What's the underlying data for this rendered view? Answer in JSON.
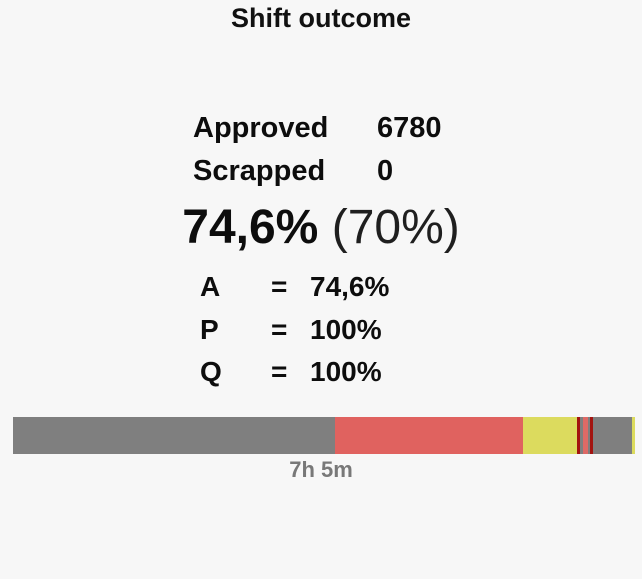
{
  "page": {
    "background": "#f7f7f7"
  },
  "title": "Shift outcome",
  "stats": {
    "rows": [
      {
        "label": "Approved",
        "value": "6780"
      },
      {
        "label": "Scrapped",
        "value": "0"
      }
    ]
  },
  "summary": {
    "achieved": "74,6%",
    "target": "(70%)"
  },
  "kpis": [
    {
      "letter": "A",
      "eq": "=",
      "value": "74,6%"
    },
    {
      "letter": "P",
      "eq": "=",
      "value": "100%"
    },
    {
      "letter": "Q",
      "eq": "=",
      "value": "100%"
    }
  ],
  "timeline": {
    "duration": "7h 5m"
  },
  "colors": {
    "background": "#f7f7f7",
    "text": "#0d0d0d",
    "duration_text": "#787878",
    "segment_gray": "#7f7f7f",
    "segment_red": "#e0625f",
    "segment_yellow": "#dcdb5e",
    "segment_dark_red": "#a31410"
  },
  "chart_data": {
    "type": "bar",
    "orientation": "horizontal_stacked_timeline",
    "title": "Shift outcome",
    "duration_label": "7h 5m",
    "legend_position": "none",
    "grid": false,
    "kpi": {
      "approved_count": 6780,
      "scrapped_count": 0,
      "outcome_pct": 74.6,
      "target_pct": 70,
      "availability_A_pct": 74.6,
      "performance_P_pct": 100,
      "quality_Q_pct": 100
    },
    "segments": [
      {
        "state": "gray",
        "color": "#7f7f7f",
        "width_pct": 51.77
      },
      {
        "state": "red",
        "color": "#e0625f",
        "width_pct": 30.23
      },
      {
        "state": "yellow",
        "color": "#dcdb5e",
        "width_pct": 8.63
      },
      {
        "state": "dark-red",
        "color": "#a31410",
        "width_pct": 0.48
      },
      {
        "state": "gray",
        "color": "#7f7f7f",
        "width_pct": 0.58
      },
      {
        "state": "red",
        "color": "#de6a66",
        "width_pct": 0.76
      },
      {
        "state": "gray",
        "color": "#7f7f7f",
        "width_pct": 0.37
      },
      {
        "state": "dark-red",
        "color": "#a31410",
        "width_pct": 0.48
      },
      {
        "state": "gray",
        "color": "#7f7f7f",
        "width_pct": 6.17
      },
      {
        "state": "yellow",
        "color": "#dcdb5e",
        "width_pct": 0.53
      }
    ]
  }
}
